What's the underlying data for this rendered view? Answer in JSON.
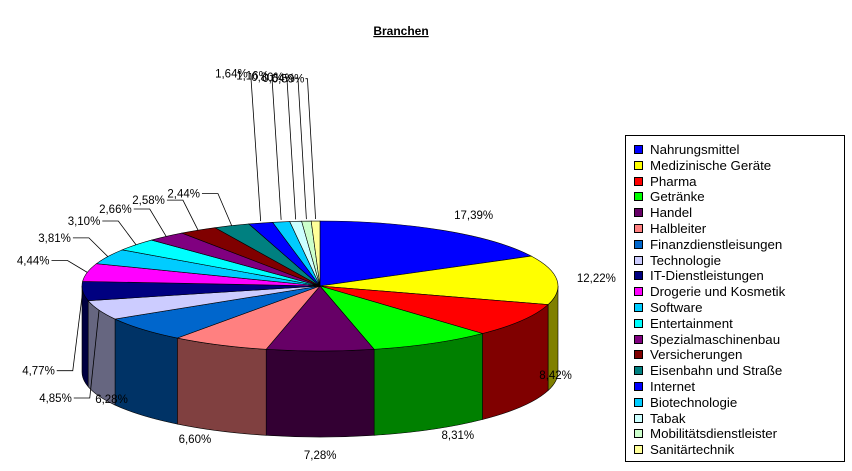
{
  "chart_data": {
    "type": "pie",
    "title": "Branchen",
    "legend_position": "right",
    "slices": [
      {
        "label": "Nahrungsmittel",
        "value": 17.39,
        "display": "17,39%",
        "color": "#0000ff"
      },
      {
        "label": "Medizinische Geräte",
        "value": 12.22,
        "display": "12,22%",
        "color": "#ffff00"
      },
      {
        "label": "Pharma",
        "value": 8.42,
        "display": "8,42%",
        "color": "#ff0000"
      },
      {
        "label": "Getränke",
        "value": 8.31,
        "display": "8,31%",
        "color": "#00ff00"
      },
      {
        "label": "Handel",
        "value": 7.28,
        "display": "7,28%",
        "color": "#660066"
      },
      {
        "label": "Halbleiter",
        "value": 6.6,
        "display": "6,60%",
        "color": "#ff8080"
      },
      {
        "label": "Finanzdienstleisungen",
        "value": 6.28,
        "display": "6,28%",
        "color": "#0066cc"
      },
      {
        "label": "Technologie",
        "value": 4.85,
        "display": "4,85%",
        "color": "#ccccff"
      },
      {
        "label": "IT-Dienstleistungen",
        "value": 4.77,
        "display": "4,77%",
        "color": "#000080"
      },
      {
        "label": "Drogerie und Kosmetik",
        "value": 4.44,
        "display": "4,44%",
        "color": "#ff00ff"
      },
      {
        "label": "Software",
        "value": 3.81,
        "display": "3,81%",
        "color": "#00ccff"
      },
      {
        "label": "Entertainment",
        "value": 3.1,
        "display": "3,10%",
        "color": "#00ffff"
      },
      {
        "label": "Spezialmaschinenbau",
        "value": 2.66,
        "display": "2,66%",
        "color": "#800080"
      },
      {
        "label": "Versicherungen",
        "value": 2.58,
        "display": "2,58%",
        "color": "#800000"
      },
      {
        "label": "Eisenbahn und Straße",
        "value": 2.44,
        "display": "2,44%",
        "color": "#008080"
      },
      {
        "label": "Internet",
        "value": 1.64,
        "display": "1,64%",
        "color": "#0000ff"
      },
      {
        "label": "Biotechnologie",
        "value": 1.16,
        "display": "1,16%",
        "color": "#00ccff"
      },
      {
        "label": "Tabak",
        "value": 0.8,
        "display": "0,80%",
        "color": "#ccffff"
      },
      {
        "label": "Mobilitätsdienstleister",
        "value": 0.64,
        "display": "0,64%",
        "color": "#ccffcc"
      },
      {
        "label": "Sanitärtechnik",
        "value": 0.59,
        "display": "0,59%",
        "color": "#ffff99"
      }
    ]
  }
}
